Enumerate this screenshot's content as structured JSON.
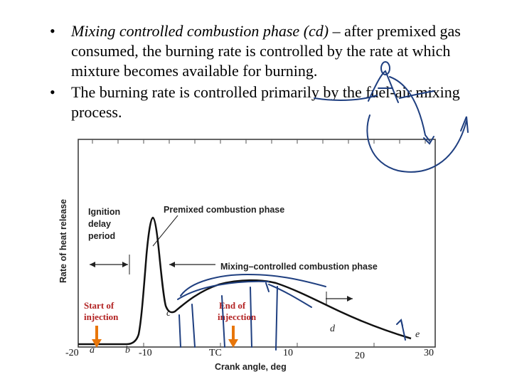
{
  "bullets": [
    {
      "marker": "•",
      "italic_part": "Mixing controlled combustion phase (cd)",
      "rest": " – after premixed gas consumed, the burning rate is controlled by the rate at which mixture becomes available for burning."
    },
    {
      "marker": "•",
      "text": "The burning rate is controlled primarily by the fuel-air mixing process."
    }
  ],
  "figure": {
    "ylabel": "Rate of heat release",
    "xlabel": "Crank angle, deg",
    "annotations": {
      "ignition_line1": "Ignition",
      "ignition_line2": "delay",
      "ignition_line3": "period",
      "premixed": "Premixed combustion phase",
      "mixing": "Mixing–controlled combustion phase",
      "start_line1": "Start of",
      "start_line2": "injection",
      "end_line1": "End of",
      "end_line2": "injecction"
    },
    "point_labels": {
      "a": "a",
      "b": "b",
      "c": "c",
      "d": "d",
      "e": "e"
    },
    "tick_labels": {
      "m20": "-20",
      "m10": "-10",
      "tc": "TC",
      "p10": "10",
      "p20": "20",
      "p30": "30"
    },
    "colors": {
      "annotation_red": "#b22222",
      "ink_blue": "#1f3f80",
      "arrow_orange": "#e8760a"
    }
  }
}
